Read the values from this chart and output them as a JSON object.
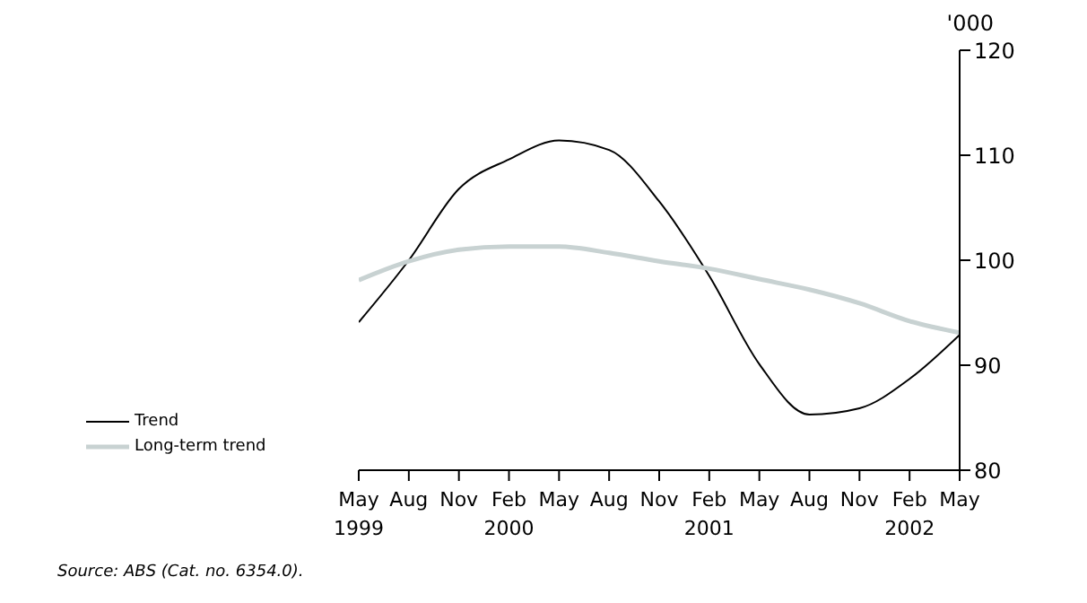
{
  "chart_data": {
    "type": "line",
    "ylabel": "'000",
    "categories": [
      "May 1999",
      "Aug",
      "Nov",
      "Feb 2000",
      "May",
      "Aug",
      "Nov",
      "Feb 2001",
      "May",
      "Aug",
      "Nov",
      "Feb 2002",
      "May"
    ],
    "series": [
      {
        "name": "Trend",
        "color": "#000000",
        "values": [
          94.1,
          100,
          106.8,
          109.6,
          111.4,
          110.5,
          105.6,
          98.5,
          90.1,
          85.3,
          85.9,
          88.7,
          92.9
        ]
      },
      {
        "name": "Long-term trend",
        "color": "#c8d2d2",
        "values": [
          98.1,
          99.9,
          101.0,
          101.3,
          101.3,
          100.7,
          99.9,
          99.2,
          98.2,
          97.2,
          95.9,
          94.2,
          93.1
        ]
      }
    ],
    "ylim": [
      80,
      120
    ],
    "yticks": [
      80,
      90,
      100,
      110,
      120
    ],
    "legend": "bottom left",
    "grid": false,
    "marker": "none",
    "line_style": "solid",
    "annotations": [
      "Source: ABS (Cat. no. 6354.0)."
    ]
  }
}
